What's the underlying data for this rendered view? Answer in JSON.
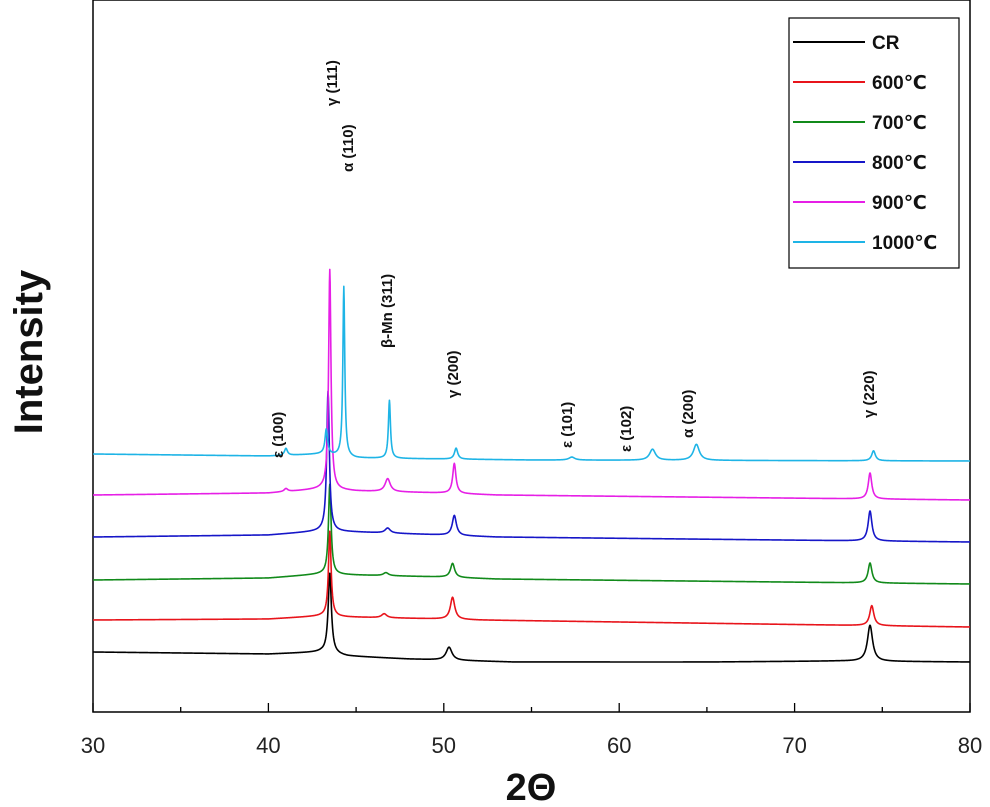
{
  "chart_data": {
    "type": "line",
    "xlabel": "2Θ",
    "ylabel": "Intensity",
    "xlim": [
      30,
      80
    ],
    "x_ticks": [
      30,
      40,
      50,
      60,
      70,
      80
    ],
    "y_ticks_shown": false,
    "grid": false,
    "legend_position": "top-right",
    "series": [
      {
        "name": "CR",
        "color": "#000000",
        "offset": 0,
        "baseline": [
          [
            30,
            10
          ],
          [
            40,
            8
          ],
          [
            43,
            10
          ],
          [
            44.5,
            6
          ],
          [
            48,
            3
          ],
          [
            54,
            0
          ],
          [
            65,
            0
          ],
          [
            72.5,
            1
          ],
          [
            80,
            0
          ]
        ],
        "peaks": [
          {
            "x": 43.5,
            "h": 80,
            "w": 0.22
          },
          {
            "x": 50.3,
            "h": 13,
            "w": 0.4
          },
          {
            "x": 74.3,
            "h": 36,
            "w": 0.35
          }
        ]
      },
      {
        "name": "600℃",
        "color": "#e8141b",
        "offset": 42,
        "baseline": [
          [
            30,
            0
          ],
          [
            40,
            1
          ],
          [
            43,
            4
          ],
          [
            44.5,
            3
          ],
          [
            50,
            1
          ],
          [
            52,
            0
          ],
          [
            80,
            -7
          ]
        ],
        "peaks": [
          {
            "x": 43.5,
            "h": 85,
            "w": 0.18
          },
          {
            "x": 46.6,
            "h": 4,
            "w": 0.35
          },
          {
            "x": 50.5,
            "h": 22,
            "w": 0.3
          },
          {
            "x": 74.4,
            "h": 20,
            "w": 0.28
          }
        ]
      },
      {
        "name": "700℃",
        "color": "#118a1a",
        "offset": 82,
        "baseline": [
          [
            30,
            0
          ],
          [
            40,
            2
          ],
          [
            43,
            6
          ],
          [
            45,
            5
          ],
          [
            50,
            3
          ],
          [
            53,
            1
          ],
          [
            80,
            -4
          ]
        ],
        "peaks": [
          {
            "x": 43.5,
            "h": 90,
            "w": 0.18
          },
          {
            "x": 46.7,
            "h": 3,
            "w": 0.35
          },
          {
            "x": 50.5,
            "h": 14,
            "w": 0.28
          },
          {
            "x": 74.3,
            "h": 20,
            "w": 0.26
          }
        ]
      },
      {
        "name": "800℃",
        "color": "#1616c8",
        "offset": 125,
        "baseline": [
          [
            30,
            0
          ],
          [
            40,
            2
          ],
          [
            43,
            6
          ],
          [
            45,
            5
          ],
          [
            50,
            2
          ],
          [
            53,
            0
          ],
          [
            80,
            -5
          ]
        ],
        "peaks": [
          {
            "x": 43.4,
            "h": 140,
            "w": 0.18
          },
          {
            "x": 46.8,
            "h": 5,
            "w": 0.35
          },
          {
            "x": 50.6,
            "h": 20,
            "w": 0.28
          },
          {
            "x": 74.3,
            "h": 30,
            "w": 0.26
          }
        ]
      },
      {
        "name": "900℃",
        "color": "#e61fe6",
        "offset": 167,
        "baseline": [
          [
            30,
            0
          ],
          [
            40,
            2
          ],
          [
            43,
            6
          ],
          [
            45,
            4
          ],
          [
            50,
            2
          ],
          [
            53,
            0
          ],
          [
            80,
            -5
          ]
        ],
        "peaks": [
          {
            "x": 41.0,
            "h": 3,
            "w": 0.25
          },
          {
            "x": 43.5,
            "h": 220,
            "w": 0.16
          },
          {
            "x": 46.8,
            "h": 13,
            "w": 0.35
          },
          {
            "x": 50.6,
            "h": 30,
            "w": 0.22
          },
          {
            "x": 74.3,
            "h": 26,
            "w": 0.24
          }
        ]
      },
      {
        "name": "1000℃",
        "color": "#1eb4e6",
        "offset": 208,
        "baseline": [
          [
            30,
            0
          ],
          [
            40,
            -2
          ],
          [
            43,
            0
          ],
          [
            45,
            -4
          ],
          [
            50,
            -5
          ],
          [
            55,
            -6
          ],
          [
            80,
            -7
          ]
        ],
        "peaks": [
          {
            "x": 41.0,
            "h": 7,
            "w": 0.2
          },
          {
            "x": 43.3,
            "h": 25,
            "w": 0.18
          },
          {
            "x": 44.3,
            "h": 170,
            "w": 0.13
          },
          {
            "x": 46.9,
            "h": 58,
            "w": 0.14
          },
          {
            "x": 50.7,
            "h": 11,
            "w": 0.22
          },
          {
            "x": 57.3,
            "h": 3,
            "w": 0.4
          },
          {
            "x": 61.9,
            "h": 11,
            "w": 0.4
          },
          {
            "x": 64.4,
            "h": 16,
            "w": 0.4
          },
          {
            "x": 74.5,
            "h": 10,
            "w": 0.25
          }
        ]
      }
    ],
    "annotations": [
      {
        "text": "ε (100)",
        "x": 41.0
      },
      {
        "text": "γ (111)",
        "x": 43.5
      },
      {
        "text": "α (110)",
        "x": 44.3
      },
      {
        "text": "β-Mn (311)",
        "x": 46.9
      },
      {
        "text": "γ (200)",
        "x": 50.6
      },
      {
        "text": "ε (101)",
        "x": 57.3
      },
      {
        "text": "ε (102)",
        "x": 61.9
      },
      {
        "text": "α (200)",
        "x": 64.4
      },
      {
        "text": "γ (220)",
        "x": 74.3
      }
    ]
  }
}
